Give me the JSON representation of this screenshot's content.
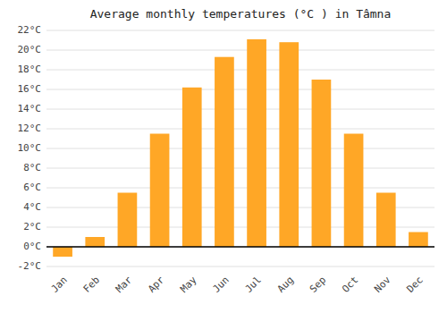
{
  "chart_data": {
    "type": "bar",
    "title": "Average monthly temperatures (°C ) in Tâmna",
    "categories": [
      "Jan",
      "Feb",
      "Mar",
      "Apr",
      "May",
      "Jun",
      "Jul",
      "Aug",
      "Sep",
      "Oct",
      "Nov",
      "Dec"
    ],
    "values": [
      -1.0,
      1.0,
      5.5,
      11.5,
      16.2,
      19.3,
      21.1,
      20.8,
      17.0,
      11.5,
      5.5,
      1.5
    ],
    "color": "#FFA726",
    "ylim": [
      -2,
      22
    ],
    "yticks": [
      {
        "value": -2,
        "label": "-2°C"
      },
      {
        "value": 0,
        "label": "0°C"
      },
      {
        "value": 2,
        "label": "2°C"
      },
      {
        "value": 4,
        "label": "4°C"
      },
      {
        "value": 6,
        "label": "6°C"
      },
      {
        "value": 8,
        "label": "8°C"
      },
      {
        "value": 10,
        "label": "10°C"
      },
      {
        "value": 12,
        "label": "12°C"
      },
      {
        "value": 14,
        "label": "14°C"
      },
      {
        "value": 16,
        "label": "16°C"
      },
      {
        "value": 18,
        "label": "18°C"
      },
      {
        "value": 20,
        "label": "20°C"
      },
      {
        "value": 22,
        "label": "22°C"
      }
    ],
    "grid": true
  }
}
